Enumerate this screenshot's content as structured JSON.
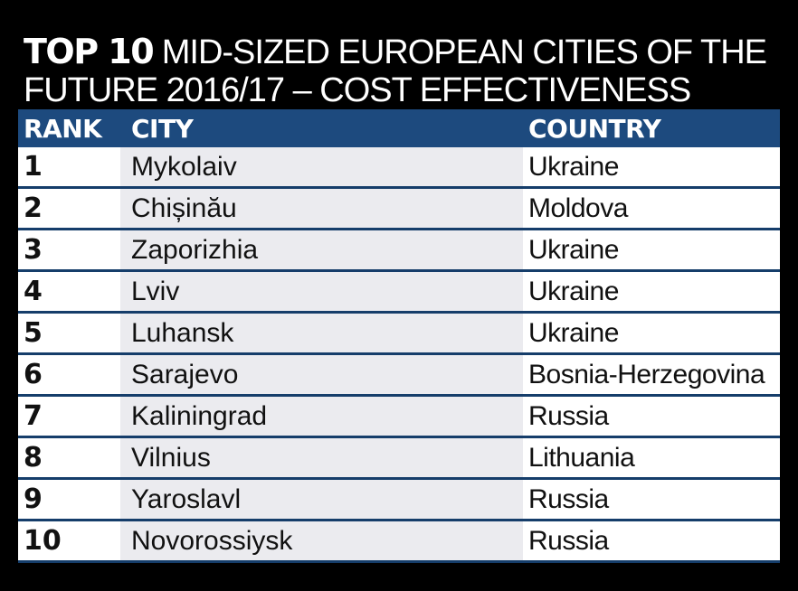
{
  "title": {
    "bold": "TOP 10",
    "rest_line1": " MID-SIZED EUROPEAN CITIES OF THE",
    "line2": "FUTURE 2016/17 – COST EFFECTIVENESS"
  },
  "colors": {
    "header_bg": "#1d4a7e",
    "city_column_bg": "#ebebef",
    "background": "#000000"
  },
  "chart_data": {
    "type": "table",
    "title": "TOP 10 MID-SIZED EUROPEAN CITIES OF THE FUTURE 2016/17 – COST EFFECTIVENESS",
    "columns": [
      "RANK",
      "CITY",
      "COUNTRY"
    ],
    "rows": [
      [
        "1",
        "Mykolaiv",
        "Ukraine"
      ],
      [
        "2",
        "Chișinău",
        "Moldova"
      ],
      [
        "3",
        "Zaporizhia",
        "Ukraine"
      ],
      [
        "4",
        "Lviv",
        "Ukraine"
      ],
      [
        "5",
        "Luhansk",
        "Ukraine"
      ],
      [
        "6",
        "Sarajevo",
        "Bosnia-Herzegovina"
      ],
      [
        "7",
        "Kaliningrad",
        "Russia"
      ],
      [
        "8",
        "Vilnius",
        "Lithuania"
      ],
      [
        "9",
        "Yaroslavl",
        "Russia"
      ],
      [
        "10",
        "Novorossiysk",
        "Russia"
      ]
    ]
  }
}
